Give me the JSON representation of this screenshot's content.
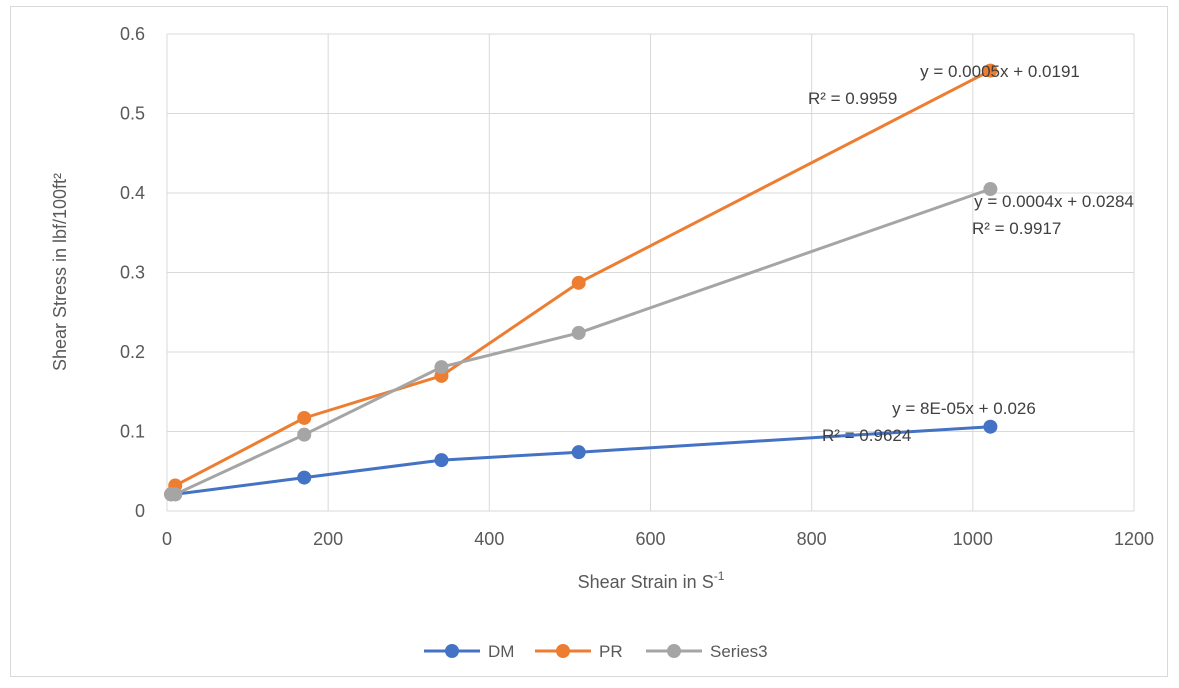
{
  "chart_data": {
    "type": "line",
    "xlabel": "Shear Strain in S",
    "xlabel_sup": "-1",
    "ylabel": "Shear Stress in lbf/100ft²",
    "xlim": [
      0,
      1200
    ],
    "ylim": [
      0,
      0.6
    ],
    "x_ticks": [
      "0",
      "200",
      "400",
      "600",
      "800",
      "1000",
      "1200"
    ],
    "y_ticks": [
      "0",
      "0.1",
      "0.2",
      "0.3",
      "0.4",
      "0.5",
      "0.6"
    ],
    "grid": true,
    "legend_position": "bottom",
    "series": [
      {
        "name": "DM",
        "color": "#4472C4",
        "x": [
          5.11,
          10.22,
          170.3,
          340.6,
          510.9,
          1021.8
        ],
        "y": [
          0.021,
          0.021,
          0.042,
          0.064,
          0.074,
          0.106
        ]
      },
      {
        "name": "PR",
        "color": "#ED7D31",
        "x": [
          5.11,
          10.22,
          170.3,
          340.6,
          510.9,
          1021.8
        ],
        "y": [
          0.021,
          0.032,
          0.117,
          0.17,
          0.287,
          0.554
        ]
      },
      {
        "name": "Series3",
        "color": "#A5A5A5",
        "x": [
          5.11,
          10.22,
          170.3,
          340.6,
          510.9,
          1021.8
        ],
        "y": [
          0.021,
          0.021,
          0.096,
          0.181,
          0.224,
          0.405
        ]
      }
    ],
    "trendline_labels": [
      {
        "series": "PR",
        "equation": "y = 0.0005x + 0.0191",
        "r2": "R² = 0.9959"
      },
      {
        "series": "Series3",
        "equation": "y = 0.0004x + 0.0284",
        "r2": "R² = 0.9917"
      },
      {
        "series": "DM",
        "equation": "y = 8E-05x + 0.026",
        "r2": "R² = 0.9624"
      }
    ]
  }
}
